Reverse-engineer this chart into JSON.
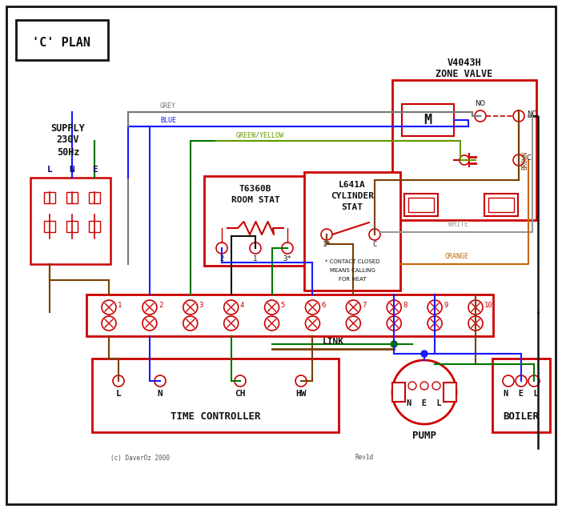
{
  "title": "'C' PLAN",
  "bg_color": "#ffffff",
  "red": "#cc0000",
  "blue": "#1a1aff",
  "green": "#007700",
  "grey": "#777777",
  "brown": "#7a4000",
  "orange": "#cc6600",
  "black": "#111111",
  "green_yellow": "#669900",
  "dark_text": "#111111",
  "label_color": "#000066",
  "time_controller_label": "TIME CONTROLLER",
  "pump_label": "PUMP",
  "boiler_label": "BOILER",
  "link_label": "LINK",
  "copyright": "(c) DaverOz 2000",
  "rev": "Rev1d",
  "figw": 7.02,
  "figh": 6.41,
  "dpi": 100
}
